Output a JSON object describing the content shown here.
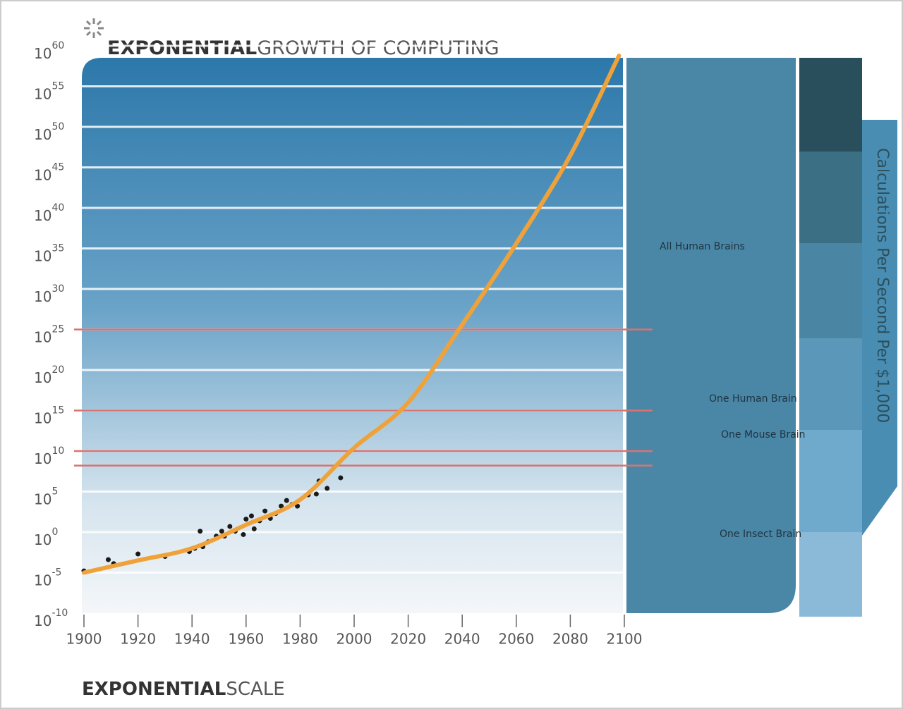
{
  "chart_data": {
    "type": "scatter",
    "title": {
      "bold": "EXPONENTIAL",
      "light": "GROWTH OF COMPUTING"
    },
    "footer": {
      "bold": "EXPONENTIAL",
      "light": "SCALE"
    },
    "y_label": "Calculations Per Second Per $1,000",
    "log_scale": true,
    "grid": true,
    "xlim": [
      1900,
      2100
    ],
    "xticks": [
      1900,
      1920,
      1940,
      1960,
      1980,
      2000,
      2020,
      2040,
      2060,
      2080,
      2100
    ],
    "ylim": [
      1e-10,
      1e+60
    ],
    "yticks": [
      {
        "value": 1e-10,
        "label": "10^-10"
      },
      {
        "value": 1e-05,
        "label": "10^-5"
      },
      {
        "value": 1,
        "label": "10^0"
      },
      {
        "value": 100000.0,
        "label": "10^5"
      },
      {
        "value": 10000000000.0,
        "label": "10^10"
      },
      {
        "value": 1000000000000000.0,
        "label": "10^15"
      },
      {
        "value": 1e+20,
        "label": "10^20"
      },
      {
        "value": 1e+25,
        "label": "10^25"
      },
      {
        "value": 1e+30,
        "label": "10^30"
      },
      {
        "value": 1e+35,
        "label": "10^35"
      },
      {
        "value": 1e+40,
        "label": "10^40"
      },
      {
        "value": 1e+45,
        "label": "10^45"
      },
      {
        "value": 1e+50,
        "label": "10^50"
      },
      {
        "value": 1e+55,
        "label": "10^55"
      },
      {
        "value": 1e+60,
        "label": "10^60"
      }
    ],
    "series": [
      {
        "type": "scatter",
        "color": "#1a1a1a",
        "x": [
          1900,
          1909,
          1911,
          1920,
          1930,
          1939,
          1941,
          1943,
          1944,
          1946,
          1949,
          1951,
          1952,
          1954,
          1956,
          1959,
          1960,
          1962,
          1963,
          1965,
          1967,
          1969,
          1971,
          1973,
          1975,
          1977,
          1979,
          1983,
          1986,
          1987,
          1990,
          1995
        ],
        "values": [
          1.6e-05,
          0.0004,
          0.00013,
          0.002,
          0.001,
          0.004,
          0.01,
          1.3,
          0.016,
          0.063,
          0.32,
          1.3,
          0.32,
          5,
          1.3,
          0.5,
          40,
          100,
          2.5,
          25,
          400,
          50,
          200,
          1600,
          8000,
          2500,
          1600,
          40000,
          50000,
          2000000,
          250000,
          5000000
        ]
      },
      {
        "type": "line",
        "color": "#f0a23a",
        "x": [
          1900,
          1920,
          1940,
          1960,
          1980,
          2000,
          2020,
          2040,
          2060,
          2080,
          2098
        ],
        "values": [
          1e-05,
          0.00032,
          0.01,
          8,
          10000.0,
          25000000000.0,
          1e+16,
          4e+25,
          4e+35,
          3e+46,
          6e+58
        ]
      }
    ],
    "reference_lines": [
      {
        "value": 1e+25,
        "label": "All Human Brains",
        "color": "#d9736f"
      },
      {
        "value": 1000000000000000.0,
        "label": "One Human Brain",
        "color": "#d9736f"
      },
      {
        "value": 10000000000.0,
        "label": "One Mouse Brain",
        "color": "#d9736f"
      },
      {
        "value": 160000000.0,
        "label": "One Insect Brain",
        "color": "#d9736f"
      }
    ]
  }
}
